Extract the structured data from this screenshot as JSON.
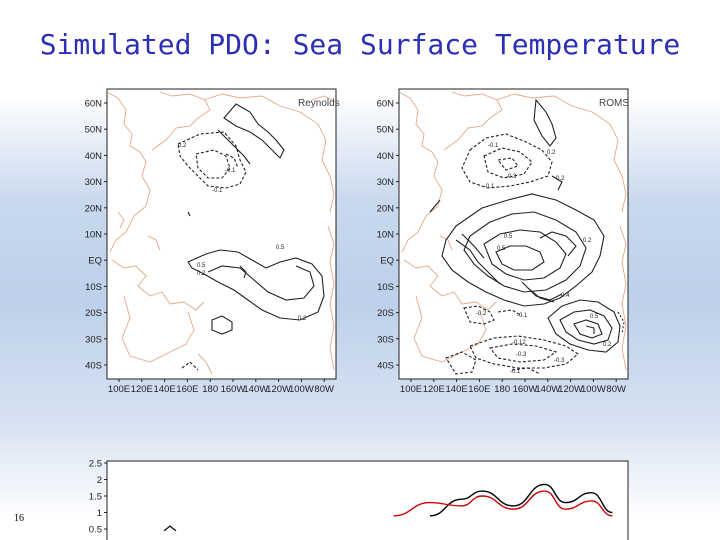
{
  "slide": {
    "title": "Simulated PDO: Sea Surface Temperature",
    "page_number": "16"
  },
  "chart_data": [
    {
      "type": "contour-map",
      "title": "Reynolds",
      "lat_ticks": [
        "60N",
        "50N",
        "40N",
        "30N",
        "20N",
        "10N",
        "EQ",
        "10S",
        "20S",
        "30S",
        "40S"
      ],
      "lon_ticks": [
        "100E",
        "120E",
        "140E",
        "160E",
        "180",
        "160W",
        "140W",
        "120W",
        "100W",
        "80W"
      ],
      "contour_labels": [
        "0.2",
        "-0.1",
        "-0.1",
        "0.5",
        "0.5",
        "0.2",
        "0.2"
      ],
      "coastline_color": "#e3a98a"
    },
    {
      "type": "contour-map",
      "title": "ROMS",
      "lat_ticks": [
        "60N",
        "50N",
        "40N",
        "30N",
        "20N",
        "10N",
        "EQ",
        "10S",
        "20S",
        "30S",
        "40S"
      ],
      "lon_ticks": [
        "100E",
        "120E",
        "140E",
        "160E",
        "180",
        "160W",
        "140W",
        "120W",
        "100W",
        "80W"
      ],
      "contour_labels": [
        "0.2",
        "-0.1",
        "-0.3",
        "-0.1",
        "0.2",
        "0.5",
        "0.5",
        "0.2",
        "0.4",
        "-0.2",
        "-0.1",
        "0.5",
        "-0.12",
        "-0.3",
        "-0.3",
        "-0.1",
        "0.2"
      ],
      "coastline_color": "#e3a98a"
    },
    {
      "type": "line",
      "y_ticks": [
        "2.5",
        "2",
        "1.5",
        "1",
        "0.5"
      ],
      "ylim": [
        0.5,
        2.5
      ],
      "series": [
        {
          "color": "#000000",
          "x": [
            0.62,
            0.68,
            0.72,
            0.78,
            0.84,
            0.88,
            0.93,
            0.97
          ],
          "values": [
            0.9,
            1.4,
            1.65,
            1.2,
            1.85,
            1.3,
            1.6,
            1.0
          ]
        },
        {
          "color": "#cc0000",
          "x": [
            0.55,
            0.62,
            0.68,
            0.72,
            0.78,
            0.84,
            0.88,
            0.93,
            0.97
          ],
          "values": [
            0.9,
            1.3,
            1.2,
            1.5,
            1.1,
            1.65,
            1.1,
            1.35,
            0.9
          ]
        }
      ]
    }
  ]
}
